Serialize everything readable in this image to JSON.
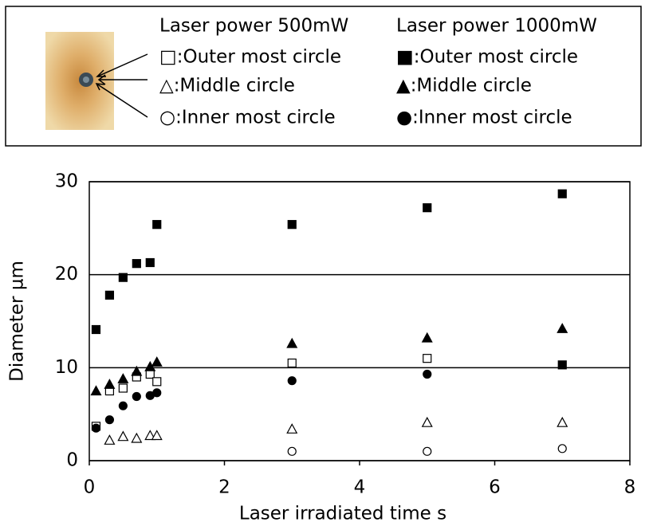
{
  "chart_data": {
    "type": "scatter",
    "xlabel": "Laser irradiated time  s",
    "ylabel": "Diameter  µm",
    "xlim": [
      0,
      8
    ],
    "xticks": [
      0,
      2,
      4,
      6,
      8
    ],
    "ylim": [
      0,
      30
    ],
    "yticks": [
      0,
      10,
      20,
      30
    ],
    "grid": true,
    "legend_titles": [
      "Laser power 500mW",
      "Laser power 1000mW"
    ],
    "series": [
      {
        "name": "□:Outer most circle",
        "marker": "square",
        "filled": false,
        "color": "#000000",
        "x": [
          0.1,
          0.3,
          0.5,
          0.7,
          0.9,
          1.0,
          3.0,
          5.0
        ],
        "values": [
          3.7,
          7.5,
          7.8,
          9.0,
          9.3,
          8.5,
          10.5,
          11.0
        ]
      },
      {
        "name": "△:Middle circle",
        "marker": "triangle",
        "filled": false,
        "color": "#000000",
        "x": [
          0.3,
          0.5,
          0.7,
          0.9,
          1.0,
          3.0,
          5.0,
          7.0
        ],
        "values": [
          2.2,
          2.6,
          2.4,
          2.7,
          2.7,
          3.4,
          4.1,
          4.1
        ]
      },
      {
        "name": "○:Inner most circle",
        "marker": "circle",
        "filled": false,
        "color": "#000000",
        "x": [
          3.0,
          5.0,
          7.0
        ],
        "values": [
          1.0,
          1.0,
          1.3
        ]
      },
      {
        "name": "■:Outer most circle",
        "marker": "square",
        "filled": true,
        "color": "#000000",
        "x": [
          0.1,
          0.3,
          0.5,
          0.7,
          0.9,
          1.0,
          3.0,
          5.0,
          7.0,
          7.0
        ],
        "values": [
          14.1,
          17.8,
          19.7,
          21.2,
          21.3,
          25.4,
          25.4,
          27.2,
          28.7,
          10.3
        ]
      },
      {
        "name": "▲:Middle circle",
        "marker": "triangle",
        "filled": true,
        "color": "#000000",
        "x": [
          0.1,
          0.3,
          0.5,
          0.7,
          0.9,
          1.0,
          3.0,
          5.0,
          7.0
        ],
        "values": [
          7.5,
          8.2,
          8.8,
          9.6,
          10.1,
          10.6,
          12.6,
          13.2,
          14.2
        ]
      },
      {
        "name": "●:Inner most circle",
        "marker": "circle",
        "filled": true,
        "color": "#000000",
        "x": [
          0.1,
          0.3,
          0.5,
          0.7,
          0.9,
          1.0,
          3.0,
          5.0
        ],
        "values": [
          3.5,
          4.4,
          5.9,
          6.9,
          7.0,
          7.3,
          8.6,
          9.3
        ]
      }
    ]
  }
}
